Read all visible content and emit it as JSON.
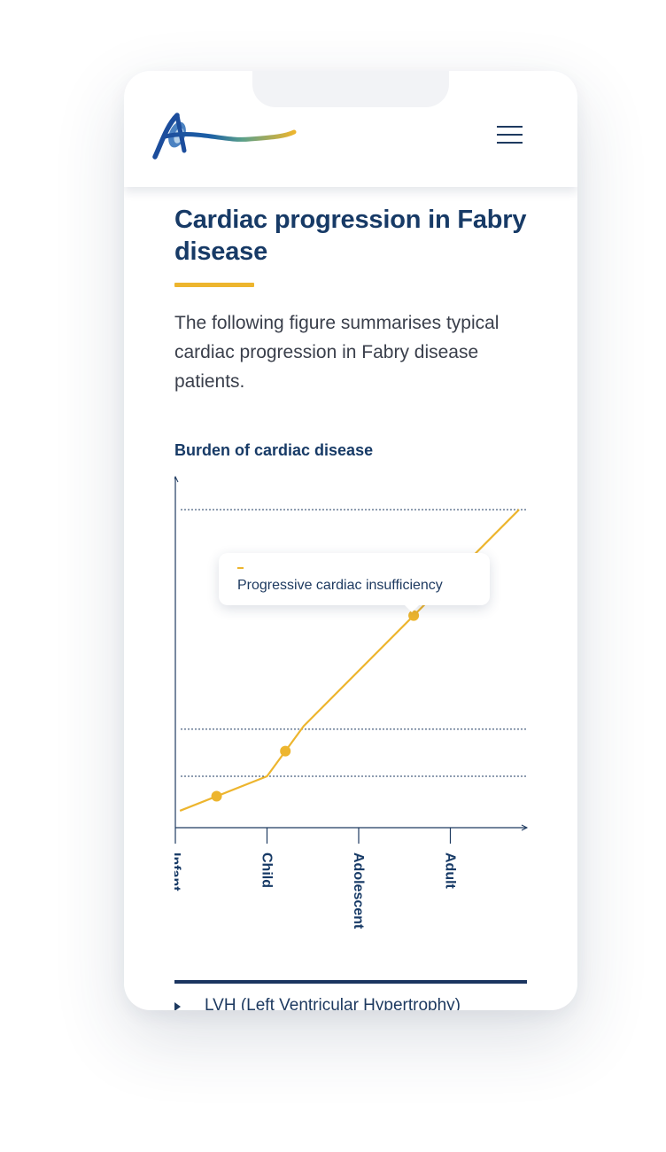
{
  "page": {
    "title": "Cardiac progression in Fabry disease",
    "intro": "The following figure summarises typical cardiac progression in Fabry disease patients."
  },
  "chart_data": {
    "type": "line",
    "title": "Burden of cardiac disease",
    "categories": [
      "Infant",
      "Child",
      "Adolescent",
      "Adult"
    ],
    "series": [
      {
        "color": "#edb52e",
        "points": [
          {
            "x": 0.05,
            "y": 0.02
          },
          {
            "x": 1.0,
            "y": 0.13
          },
          {
            "x": 1.4,
            "y": 0.29
          },
          {
            "x": 3.75,
            "y": 0.98
          }
        ],
        "markers": [
          0.45,
          1.2,
          2.6
        ]
      }
    ],
    "reference_lines": [
      0.13,
      0.28,
      0.98
    ],
    "tooltip": "Progressive cardiac insufficiency",
    "ylim": [
      0,
      1
    ],
    "xlim": [
      0,
      3.8
    ],
    "grid": false
  },
  "accordion": {
    "first_item": "LVH (Left Ventricular Hypertrophy)"
  },
  "colors": {
    "heading": "#173a66",
    "accent": "#edb52e",
    "axis": "#1e3a60"
  },
  "icons": {
    "logo": "brand-logo",
    "menu": "hamburger-icon",
    "expand": "triangle-right-icon"
  }
}
